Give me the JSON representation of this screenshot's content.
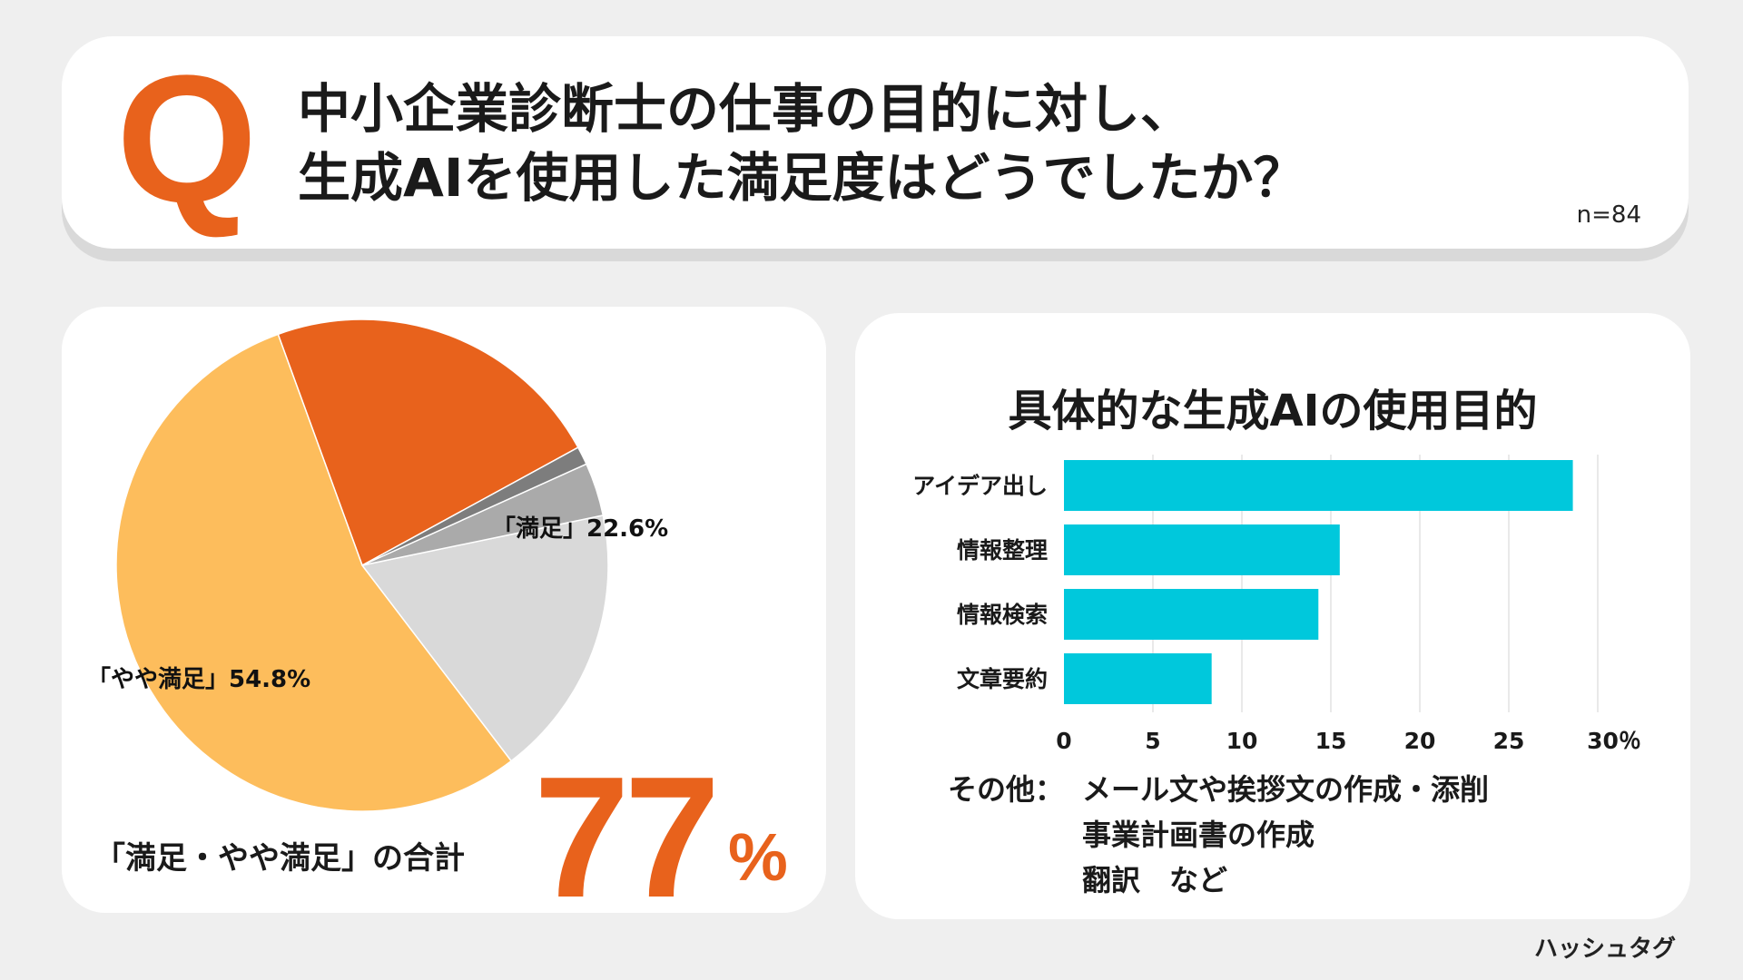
{
  "question": {
    "mark": "Q",
    "title_line1": "中小企業診断士の仕事の目的に対し、",
    "title_line2": "生成AIを使用した満足度はどうでしたか？",
    "sample_size": "n=84"
  },
  "colors": {
    "accent_orange": "#e8621c",
    "light_orange": "#fdbd5c",
    "light_gray": "#d9d9d9",
    "mid_gray": "#aaaaaa",
    "dark_gray": "#7d7d7d",
    "bar_cyan": "#00c8dc"
  },
  "summary": {
    "label": "「満足・やや満足」の合計",
    "value": "77",
    "unit": "%"
  },
  "chart_data": [
    {
      "type": "pie",
      "slices": [
        {
          "label": "「満足」22.6%",
          "value": 22.6,
          "color": "#e8621c"
        },
        {
          "label": "「やや満足」54.8%",
          "value": 54.8,
          "color": "#fdbd5c"
        },
        {
          "label": "",
          "value": 17.9,
          "color": "#d9d9d9"
        },
        {
          "label": "",
          "value": 3.5,
          "color": "#aaaaaa"
        },
        {
          "label": "",
          "value": 1.2,
          "color": "#7d7d7d"
        }
      ]
    },
    {
      "type": "bar",
      "orientation": "horizontal",
      "title": "具体的な生成AIの使用目的",
      "categories": [
        "アイデア出し",
        "情報整理",
        "情報検索",
        "文章要約"
      ],
      "values": [
        28.6,
        15.5,
        14.3,
        8.3
      ],
      "xlim": [
        0,
        30
      ],
      "ticks": [
        "0",
        "5",
        "10",
        "15",
        "20",
        "25",
        "30％"
      ],
      "grid": true,
      "color": "#00c8dc"
    }
  ],
  "other_note": {
    "head": "その他：",
    "lines": [
      "メール文や挨拶文の作成・添削",
      "事業計画書の作成",
      "翻訳　など"
    ]
  },
  "brand": "ハッシュタグ"
}
